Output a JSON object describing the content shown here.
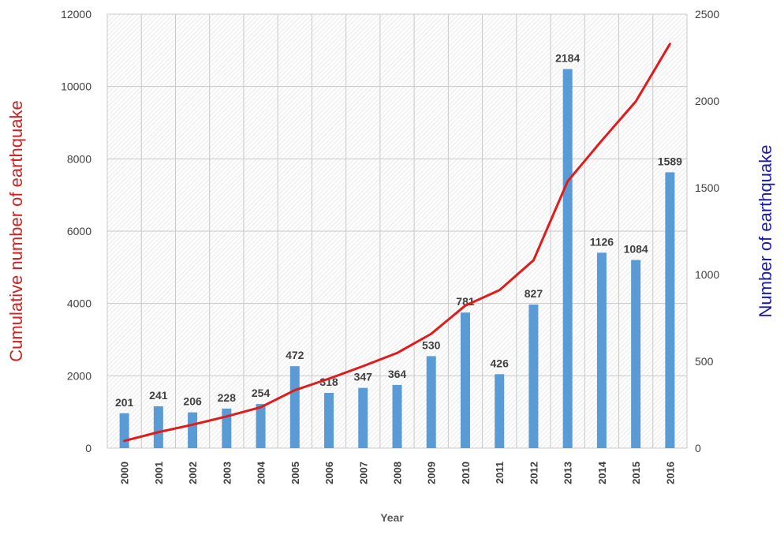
{
  "chart_data": {
    "type": "bar+line",
    "categories": [
      "2000",
      "2001",
      "2002",
      "2003",
      "2004",
      "2005",
      "2006",
      "2007",
      "2008",
      "2009",
      "2010",
      "2011",
      "2012",
      "2013",
      "2014",
      "2015",
      "2016"
    ],
    "series": [
      {
        "name": "Number of earthquake",
        "type": "bar",
        "axis": "right",
        "color": "#5b9bd5",
        "values": [
          201,
          241,
          206,
          228,
          254,
          472,
          318,
          347,
          364,
          530,
          781,
          426,
          827,
          2184,
          1126,
          1084,
          1589
        ]
      },
      {
        "name": "Cumulative number of earthquake",
        "type": "line",
        "axis": "left",
        "color": "#e01b1b",
        "values": [
          201,
          442,
          648,
          876,
          1130,
          1602,
          1920,
          2267,
          2631,
          3161,
          3942,
          4368,
          5195,
          7379,
          8505,
          9589,
          11178
        ]
      }
    ],
    "bar_labels": [
      "201",
      "241",
      "206",
      "228",
      "254",
      "472",
      "318",
      "347",
      "364",
      "530",
      "781",
      "426",
      "827",
      "2184",
      "1126",
      "1084",
      "1589"
    ],
    "xlabel": "Year",
    "ylabel_left": "Cumulative number of earthquake",
    "ylabel_right": "Number of earthquake",
    "ylim_left": [
      0,
      12000
    ],
    "ylim_right": [
      0,
      2500
    ],
    "yticks_left": [
      "0",
      "2000",
      "4000",
      "6000",
      "8000",
      "10000",
      "12000"
    ],
    "yticks_right": [
      "0",
      "500",
      "1000",
      "1500",
      "2000",
      "2500"
    ],
    "ylabel_left_color": "#d42020",
    "ylabel_right_color": "#1a1aa6",
    "grid": true
  }
}
